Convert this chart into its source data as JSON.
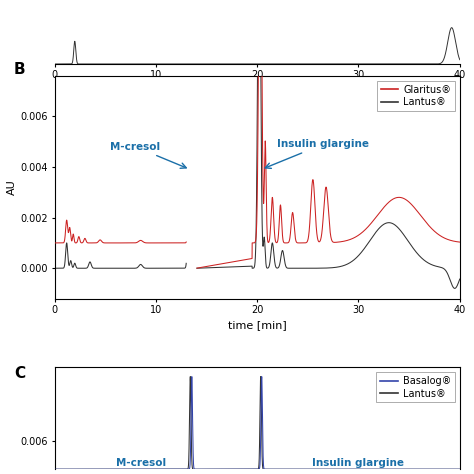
{
  "ylabel": "AU",
  "xlabel": "time [min]",
  "glaritus_color": "#cc2222",
  "lantus_color": "#333333",
  "basalog_color": "#3344aa",
  "annotation_color": "#1a6fa8",
  "xlim": [
    0,
    40
  ],
  "B_ylim": [
    -0.0012,
    0.0076
  ],
  "B_yticks": [
    0.0,
    0.002,
    0.004,
    0.006
  ],
  "B_ytick_labels": [
    "0.000",
    "0.002",
    "0.004",
    "0.006"
  ],
  "xticks": [
    0,
    10,
    20,
    30,
    40
  ],
  "C_yticks": [
    0.006
  ],
  "C_ytick_labels": [
    "0.006"
  ]
}
